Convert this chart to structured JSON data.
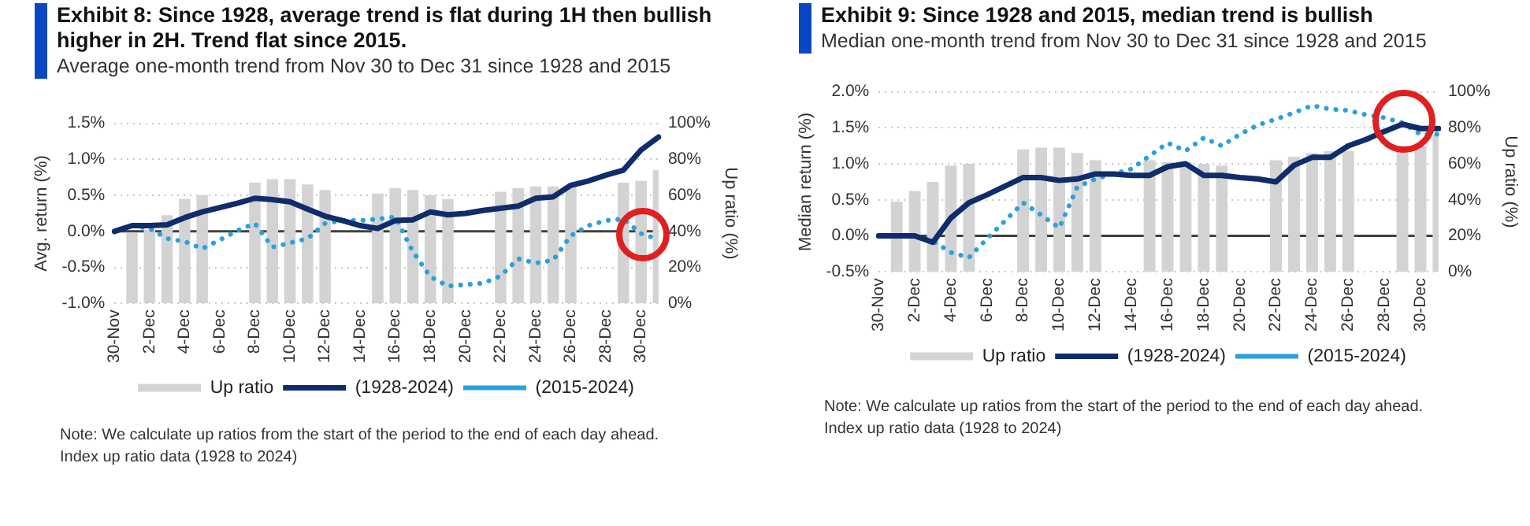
{
  "chart_data": [
    {
      "type": "line",
      "title": "Exhibit 8: Since 1928, average trend is flat during 1H then bullish higher in 2H. Trend flat since 2015.",
      "subtitle": "Average one-month trend from Nov 30 to Dec 31 since 1928 and 2015",
      "ylabel": "Avg. return (%)",
      "y2label": "Up ratio (%)",
      "categories": [
        "30-Nov",
        null,
        "2-Dec",
        null,
        "4-Dec",
        null,
        "6-Dec",
        null,
        "8-Dec",
        null,
        "10-Dec",
        null,
        "12-Dec",
        null,
        "14-Dec",
        null,
        "16-Dec",
        null,
        "18-Dec",
        null,
        "20-Dec",
        null,
        "22-Dec",
        null,
        "24-Dec",
        null,
        "26-Dec",
        null,
        "28-Dec",
        null,
        "30-Dec",
        null
      ],
      "series": [
        {
          "name": "Up ratio",
          "type": "bar",
          "axis": "y2",
          "color": "#d3d3d3",
          "values": [
            null,
            39,
            41,
            49,
            58,
            60,
            null,
            null,
            67,
            69,
            69,
            66,
            63,
            null,
            null,
            61,
            64,
            63,
            60,
            58,
            null,
            null,
            62,
            64,
            65,
            65,
            65,
            null,
            null,
            67,
            68,
            74
          ]
        },
        {
          "name": "(1928-2024)",
          "color": "#0f2d6b",
          "line_style": "solid",
          "values": [
            0,
            0.08,
            0.08,
            0.09,
            0.19,
            0.27,
            0.33,
            0.39,
            0.46,
            0.44,
            0.41,
            0.31,
            0.21,
            0.15,
            0.08,
            0.04,
            0.15,
            0.16,
            0.27,
            0.23,
            0.25,
            0.29,
            0.32,
            0.35,
            0.46,
            0.48,
            0.64,
            0.7,
            0.78,
            0.85,
            1.13,
            1.31
          ]
        },
        {
          "name": "(2015-2024)",
          "color": "#2aa1dc",
          "line_style": "dotted",
          "values": [
            0,
            0.08,
            0.04,
            -0.1,
            -0.14,
            -0.24,
            -0.12,
            0.01,
            0.11,
            -0.22,
            -0.16,
            -0.1,
            0.11,
            0.15,
            0.15,
            0.17,
            0.2,
            -0.28,
            -0.63,
            -0.76,
            -0.74,
            -0.72,
            -0.62,
            -0.38,
            -0.44,
            -0.4,
            -0.06,
            0.08,
            0.15,
            0.17,
            -0.03,
            -0.11
          ]
        }
      ],
      "ylim": [
        -1,
        1.5
      ],
      "yticks": [
        {
          "value": -1,
          "label": "-1.0%"
        },
        {
          "value": -0.5,
          "label": "-0.5%"
        },
        {
          "value": 0,
          "label": "0.0%"
        },
        {
          "value": 0.5,
          "label": "0.5%"
        },
        {
          "value": 1,
          "label": "1.0%"
        },
        {
          "value": 1.5,
          "label": "1.5%"
        }
      ],
      "y2lim": [
        0,
        100
      ],
      "y2ticks": [
        {
          "value": 0,
          "label": "0%"
        },
        {
          "value": 20,
          "label": "20%"
        },
        {
          "value": 40,
          "label": "40%"
        },
        {
          "value": 60,
          "label": "60%"
        },
        {
          "value": 80,
          "label": "80%"
        },
        {
          "value": 100,
          "label": "100%"
        }
      ],
      "ref_lines": [
        {
          "axis": "y",
          "value": 0,
          "color": "#404040"
        }
      ],
      "grid": "y",
      "legend": "bottom",
      "annotations": [
        "Note: We calculate up ratios from the start of the period to the end of each day ahead.",
        "Index up ratio data (1928 to 2024)"
      ]
    },
    {
      "type": "line",
      "title": "Exhibit 9: Since 1928 and 2015, median trend is bullish",
      "subtitle": "Median one-month trend from Nov 30 to Dec 31 since 1928 and 2015",
      "ylabel": "Median return (%)",
      "y2label": "Up ratio (%)",
      "categories": [
        "30-Nov",
        null,
        "2-Dec",
        null,
        "4-Dec",
        null,
        "6-Dec",
        null,
        "8-Dec",
        null,
        "10-Dec",
        null,
        "12-Dec",
        null,
        "14-Dec",
        null,
        "16-Dec",
        null,
        "18-Dec",
        null,
        "20-Dec",
        null,
        "22-Dec",
        null,
        "24-Dec",
        null,
        "26-Dec",
        null,
        "28-Dec",
        null,
        "30-Dec",
        null
      ],
      "series": [
        {
          "name": "Up ratio",
          "type": "bar",
          "axis": "y2",
          "color": "#d3d3d3",
          "values": [
            null,
            39,
            45,
            50,
            59,
            60,
            null,
            null,
            68,
            69,
            69,
            66,
            62,
            null,
            null,
            62,
            61,
            61,
            60,
            59,
            null,
            null,
            62,
            64,
            66,
            67,
            67,
            null,
            null,
            70,
            70,
            76
          ]
        },
        {
          "name": "(1928-2024)",
          "color": "#0f2d6b",
          "line_style": "solid",
          "values": [
            0,
            0,
            0,
            -0.09,
            0.25,
            0.46,
            0.57,
            0.69,
            0.81,
            0.81,
            0.77,
            0.79,
            0.86,
            0.86,
            0.84,
            0.84,
            0.96,
            1,
            0.84,
            0.84,
            0.81,
            0.79,
            0.75,
            0.98,
            1.09,
            1.09,
            1.25,
            1.34,
            1.45,
            1.55,
            1.49,
            1.49
          ]
        },
        {
          "name": "(2015-2024)",
          "color": "#2aa1dc",
          "line_style": "dotted",
          "values": [
            0,
            0,
            0,
            -0.07,
            -0.23,
            -0.3,
            -0.04,
            0.21,
            0.46,
            0.29,
            0.11,
            0.68,
            0.79,
            0.86,
            0.93,
            1.11,
            1.29,
            1.18,
            1.36,
            1.25,
            1.41,
            1.54,
            1.62,
            1.71,
            1.81,
            1.76,
            1.74,
            1.68,
            1.64,
            1.57,
            1.41,
            1.41
          ]
        }
      ],
      "ylim": [
        -0.5,
        2
      ],
      "yticks": [
        {
          "value": -0.5,
          "label": "-0.5%"
        },
        {
          "value": 0,
          "label": "0.0%"
        },
        {
          "value": 0.5,
          "label": "0.5%"
        },
        {
          "value": 1,
          "label": "1.0%"
        },
        {
          "value": 1.5,
          "label": "1.5%"
        },
        {
          "value": 2,
          "label": "2.0%"
        }
      ],
      "y2lim": [
        0,
        100
      ],
      "y2ticks": [
        {
          "value": 0,
          "label": "0%"
        },
        {
          "value": 20,
          "label": "20%"
        },
        {
          "value": 40,
          "label": "40%"
        },
        {
          "value": 60,
          "label": "60%"
        },
        {
          "value": 80,
          "label": "80%"
        },
        {
          "value": 100,
          "label": "100%"
        }
      ],
      "ref_lines": [
        {
          "axis": "y",
          "value": 0,
          "color": "#404040"
        }
      ],
      "grid": "y",
      "legend": "bottom",
      "annotations": [
        "Note: We calculate up ratios from the start of the period to the end of each day ahead.",
        "Index up ratio data (1928 to 2024)"
      ]
    }
  ]
}
